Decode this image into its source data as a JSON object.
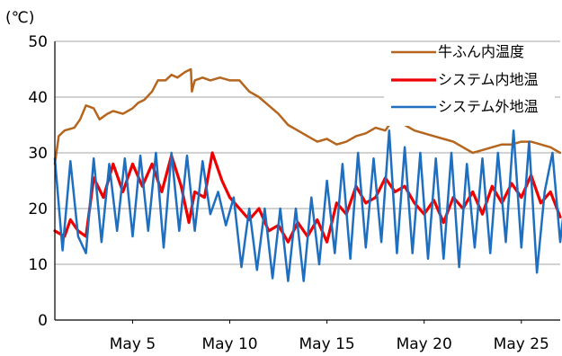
{
  "chart_data": {
    "type": "line",
    "unit_label": "(℃)",
    "ylim": [
      0,
      50
    ],
    "yticks": [
      0,
      10,
      20,
      30,
      40,
      50
    ],
    "xlim": [
      1,
      27
    ],
    "xticks": [
      {
        "day": 5,
        "label": "May 5"
      },
      {
        "day": 10,
        "label": "May 10"
      },
      {
        "day": 15,
        "label": "May 15"
      },
      {
        "day": 20,
        "label": "May 20"
      },
      {
        "day": 25,
        "label": "May 25"
      }
    ],
    "grid": "horizontal",
    "legend_position": "top-right",
    "series": [
      {
        "name": "牛ふん内温度",
        "color": "#b5651d",
        "points": [
          [
            1,
            28
          ],
          [
            1.2,
            33
          ],
          [
            1.5,
            34
          ],
          [
            2,
            34.5
          ],
          [
            2.3,
            36
          ],
          [
            2.6,
            38.5
          ],
          [
            3,
            38
          ],
          [
            3.3,
            36
          ],
          [
            3.7,
            37
          ],
          [
            4,
            37.5
          ],
          [
            4.5,
            37
          ],
          [
            5,
            38
          ],
          [
            5.3,
            39
          ],
          [
            5.6,
            39.5
          ],
          [
            6,
            41
          ],
          [
            6.3,
            43
          ],
          [
            6.7,
            43
          ],
          [
            7,
            44
          ],
          [
            7.3,
            43.5
          ],
          [
            7.7,
            44.5
          ],
          [
            8,
            45
          ],
          [
            8.05,
            41
          ],
          [
            8.2,
            43
          ],
          [
            8.6,
            43.5
          ],
          [
            9,
            43
          ],
          [
            9.5,
            43.5
          ],
          [
            10,
            43
          ],
          [
            10.5,
            43
          ],
          [
            11,
            41
          ],
          [
            11.5,
            40
          ],
          [
            12,
            38.5
          ],
          [
            12.5,
            37
          ],
          [
            13,
            35
          ],
          [
            13.5,
            34
          ],
          [
            14,
            33
          ],
          [
            14.5,
            32
          ],
          [
            15,
            32.5
          ],
          [
            15.5,
            31.5
          ],
          [
            16,
            32
          ],
          [
            16.5,
            33
          ],
          [
            17,
            33.5
          ],
          [
            17.5,
            34.5
          ],
          [
            18,
            34
          ],
          [
            18.3,
            35.5
          ],
          [
            18.7,
            35.5
          ],
          [
            19,
            35
          ],
          [
            19.5,
            34
          ],
          [
            20,
            33.5
          ],
          [
            20.5,
            33
          ],
          [
            21,
            32.5
          ],
          [
            21.5,
            32
          ],
          [
            22,
            31
          ],
          [
            22.5,
            30
          ],
          [
            23,
            30.5
          ],
          [
            23.5,
            31
          ],
          [
            24,
            31.5
          ],
          [
            24.5,
            31.5
          ],
          [
            25,
            32
          ],
          [
            25.5,
            32
          ],
          [
            26,
            31.5
          ],
          [
            26.5,
            31
          ],
          [
            27,
            30
          ]
        ]
      },
      {
        "name": "システム内地温",
        "color": "#ee0000",
        "points": [
          [
            1,
            16
          ],
          [
            1.5,
            15
          ],
          [
            1.8,
            18
          ],
          [
            2.2,
            16
          ],
          [
            2.6,
            15
          ],
          [
            3,
            25.5
          ],
          [
            3.5,
            22
          ],
          [
            4,
            28
          ],
          [
            4.5,
            23
          ],
          [
            5,
            28
          ],
          [
            5.5,
            24
          ],
          [
            6,
            28
          ],
          [
            6.5,
            23
          ],
          [
            7,
            29.5
          ],
          [
            7.5,
            24
          ],
          [
            7.9,
            17.5
          ],
          [
            8.2,
            23
          ],
          [
            8.7,
            22
          ],
          [
            9.1,
            30
          ],
          [
            9.6,
            25
          ],
          [
            10,
            22
          ],
          [
            10.5,
            20
          ],
          [
            11,
            18
          ],
          [
            11.5,
            20
          ],
          [
            12,
            16
          ],
          [
            12.5,
            17
          ],
          [
            13,
            14
          ],
          [
            13.5,
            17.5
          ],
          [
            14,
            15
          ],
          [
            14.5,
            18
          ],
          [
            15,
            14
          ],
          [
            15.5,
            21
          ],
          [
            16,
            19
          ],
          [
            16.5,
            24
          ],
          [
            17,
            21
          ],
          [
            17.5,
            22
          ],
          [
            18,
            25.5
          ],
          [
            18.5,
            23
          ],
          [
            19,
            24
          ],
          [
            19.5,
            21
          ],
          [
            20,
            19
          ],
          [
            20.5,
            21.5
          ],
          [
            21,
            17.5
          ],
          [
            21.5,
            22
          ],
          [
            22,
            20
          ],
          [
            22.5,
            23
          ],
          [
            23,
            19
          ],
          [
            23.5,
            24
          ],
          [
            24,
            21
          ],
          [
            24.5,
            24.5
          ],
          [
            25,
            22
          ],
          [
            25.5,
            26
          ],
          [
            26,
            21
          ],
          [
            26.5,
            23
          ],
          [
            27,
            18.5
          ]
        ]
      },
      {
        "name": "システム外地温",
        "color": "#1f6fc0",
        "points": [
          [
            1,
            29
          ],
          [
            1.4,
            12.5
          ],
          [
            1.8,
            28.5
          ],
          [
            2.2,
            15
          ],
          [
            2.6,
            12
          ],
          [
            3,
            29
          ],
          [
            3.4,
            14
          ],
          [
            3.8,
            28
          ],
          [
            4.2,
            16
          ],
          [
            4.6,
            29
          ],
          [
            5,
            15
          ],
          [
            5.4,
            29.5
          ],
          [
            5.8,
            16
          ],
          [
            6.2,
            30
          ],
          [
            6.6,
            13
          ],
          [
            7,
            30
          ],
          [
            7.4,
            16
          ],
          [
            7.8,
            29.5
          ],
          [
            8.2,
            16
          ],
          [
            8.6,
            28.5
          ],
          [
            9,
            19
          ],
          [
            9.4,
            23
          ],
          [
            9.8,
            17
          ],
          [
            10.2,
            22
          ],
          [
            10.6,
            9.5
          ],
          [
            11,
            20
          ],
          [
            11.4,
            9
          ],
          [
            11.8,
            20
          ],
          [
            12.2,
            7.5
          ],
          [
            12.6,
            20
          ],
          [
            13,
            7
          ],
          [
            13.4,
            20
          ],
          [
            13.8,
            7
          ],
          [
            14.2,
            22
          ],
          [
            14.6,
            10
          ],
          [
            15,
            25
          ],
          [
            15.4,
            12
          ],
          [
            15.8,
            28
          ],
          [
            16.2,
            11
          ],
          [
            16.6,
            30
          ],
          [
            17,
            13
          ],
          [
            17.4,
            29
          ],
          [
            17.8,
            14
          ],
          [
            18.2,
            34
          ],
          [
            18.6,
            12
          ],
          [
            19,
            31
          ],
          [
            19.4,
            12
          ],
          [
            19.8,
            30
          ],
          [
            20.2,
            11
          ],
          [
            20.6,
            29
          ],
          [
            21,
            11
          ],
          [
            21.4,
            30
          ],
          [
            21.8,
            9.5
          ],
          [
            22.2,
            28
          ],
          [
            22.6,
            13
          ],
          [
            23,
            29
          ],
          [
            23.4,
            12
          ],
          [
            23.8,
            30
          ],
          [
            24.2,
            14
          ],
          [
            24.6,
            34
          ],
          [
            25,
            13
          ],
          [
            25.4,
            32
          ],
          [
            25.8,
            8.5
          ],
          [
            26.2,
            23
          ],
          [
            26.6,
            30
          ],
          [
            27,
            14
          ],
          [
            27.2,
            20
          ]
        ]
      }
    ]
  }
}
